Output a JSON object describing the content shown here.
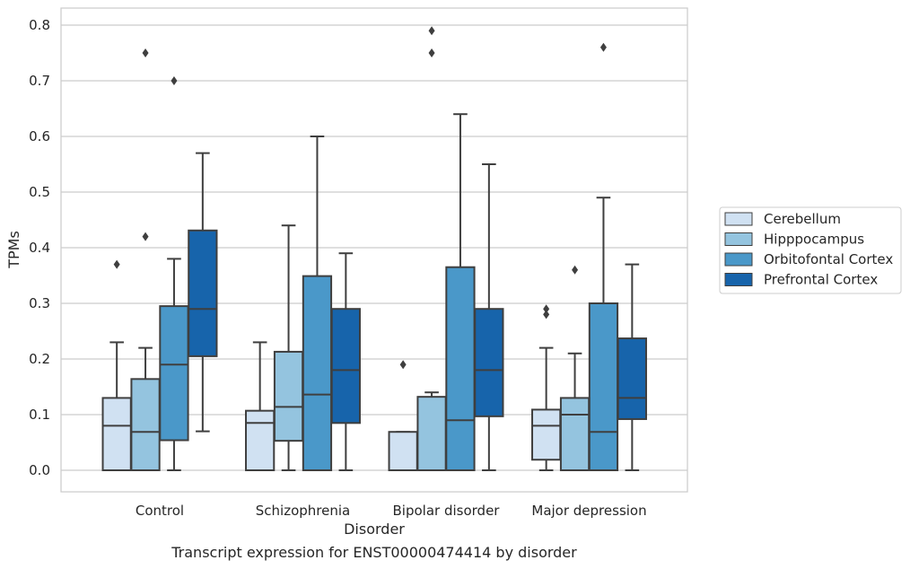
{
  "caption": "Transcript expression for ENST00000474414 by disorder",
  "chart_data": {
    "type": "boxplot",
    "xlabel": "Disorder",
    "ylabel": "TPMs",
    "ylim": [
      -0.04,
      0.83
    ],
    "yticks": [
      "0.0",
      "0.1",
      "0.2",
      "0.3",
      "0.4",
      "0.5",
      "0.6",
      "0.7",
      "0.8"
    ],
    "grid": "horizontal",
    "legend_position": "right",
    "categories": [
      "Control",
      "Schizophrenia",
      "Bipolar disorder",
      "Major depression"
    ],
    "series": [
      {
        "name": "Cerebellum",
        "color": "#d0e1f2",
        "boxes": [
          {
            "whislo": 0.0,
            "q1": 0.0,
            "med": 0.08,
            "q3": 0.13,
            "whishi": 0.23,
            "fliers": [
              0.37
            ]
          },
          {
            "whislo": 0.0,
            "q1": 0.0,
            "med": 0.085,
            "q3": 0.107,
            "whishi": 0.23,
            "fliers": []
          },
          {
            "whislo": 0.0,
            "q1": 0.0,
            "med": 0.0,
            "q3": 0.069,
            "whishi": 0.069,
            "fliers": [
              0.19
            ]
          },
          {
            "whislo": 0.0,
            "q1": 0.019,
            "med": 0.08,
            "q3": 0.109,
            "whishi": 0.22,
            "fliers": [
              0.28,
              0.29
            ]
          }
        ]
      },
      {
        "name": "Hipppocampus",
        "color": "#94c4df",
        "boxes": [
          {
            "whislo": 0.0,
            "q1": 0.0,
            "med": 0.069,
            "q3": 0.164,
            "whishi": 0.22,
            "fliers": [
              0.42,
              0.75
            ]
          },
          {
            "whislo": 0.0,
            "q1": 0.053,
            "med": 0.114,
            "q3": 0.213,
            "whishi": 0.44,
            "fliers": []
          },
          {
            "whislo": 0.0,
            "q1": 0.0,
            "med": 0.0,
            "q3": 0.132,
            "whishi": 0.14,
            "fliers": [
              0.75,
              0.79
            ]
          },
          {
            "whislo": 0.0,
            "q1": 0.0,
            "med": 0.1,
            "q3": 0.13,
            "whishi": 0.21,
            "fliers": [
              0.36
            ]
          }
        ]
      },
      {
        "name": "Orbitofontal Cortex",
        "color": "#4a98c9",
        "boxes": [
          {
            "whislo": 0.0,
            "q1": 0.054,
            "med": 0.19,
            "q3": 0.295,
            "whishi": 0.38,
            "fliers": [
              0.7
            ]
          },
          {
            "whislo": 0.0,
            "q1": 0.0,
            "med": 0.136,
            "q3": 0.349,
            "whishi": 0.6,
            "fliers": []
          },
          {
            "whislo": 0.0,
            "q1": 0.0,
            "med": 0.09,
            "q3": 0.365,
            "whishi": 0.64,
            "fliers": []
          },
          {
            "whislo": 0.0,
            "q1": 0.0,
            "med": 0.069,
            "q3": 0.3,
            "whishi": 0.49,
            "fliers": [
              0.76
            ]
          }
        ]
      },
      {
        "name": "Prefrontal Cortex",
        "color": "#1764ab",
        "boxes": [
          {
            "whislo": 0.07,
            "q1": 0.205,
            "med": 0.29,
            "q3": 0.431,
            "whishi": 0.57,
            "fliers": []
          },
          {
            "whislo": 0.0,
            "q1": 0.085,
            "med": 0.18,
            "q3": 0.29,
            "whishi": 0.39,
            "fliers": []
          },
          {
            "whislo": 0.0,
            "q1": 0.097,
            "med": 0.18,
            "q3": 0.29,
            "whishi": 0.55,
            "fliers": []
          },
          {
            "whislo": 0.0,
            "q1": 0.092,
            "med": 0.13,
            "q3": 0.237,
            "whishi": 0.37,
            "fliers": []
          }
        ]
      }
    ]
  }
}
